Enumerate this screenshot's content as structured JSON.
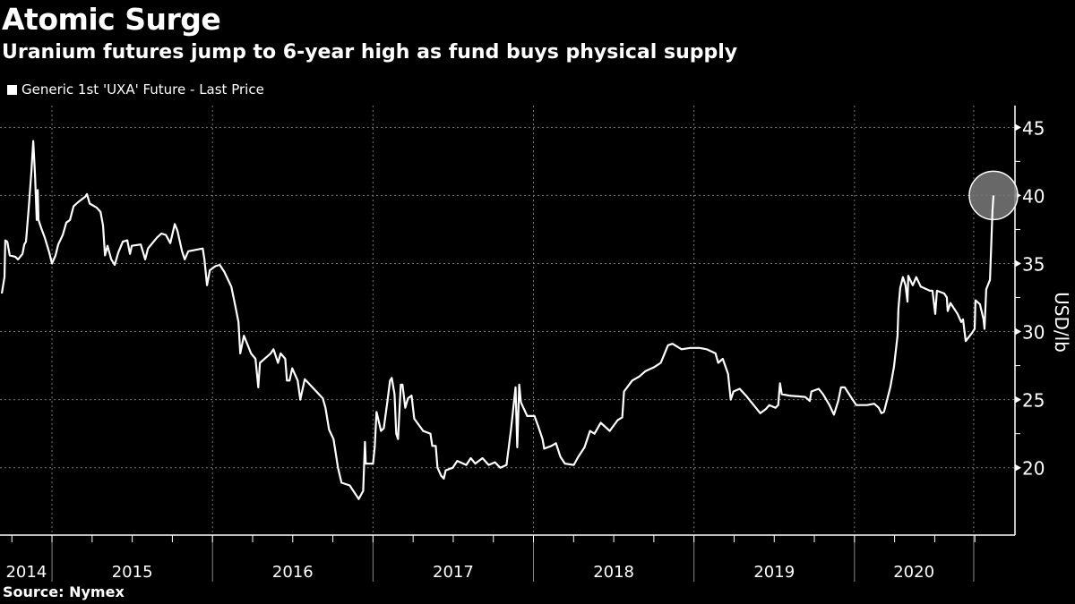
{
  "title": "Atomic Surge",
  "subtitle": "Uranium futures jump to 6-year high as fund buys physical supply",
  "source": "Source: Nymex",
  "chart_data": {
    "type": "line",
    "title": "Atomic Surge",
    "subtitle": "Uranium futures jump to 6-year high as fund buys physical supply",
    "xlabel": "",
    "ylabel": "USD/lb",
    "xlim": [
      2014.676,
      2021.0
    ],
    "ylim": [
      15.05,
      46.6
    ],
    "grid": true,
    "legend_position": "top-left",
    "y_ticks": [
      20,
      25,
      30,
      35,
      40,
      45
    ],
    "x_dividers": [
      2015,
      2016,
      2017,
      2018,
      2019,
      2020,
      2020.743
    ],
    "x_labels": [
      {
        "label": "2014",
        "at": 2014.84
      },
      {
        "label": "2015",
        "at": 2015.5
      },
      {
        "label": "2016",
        "at": 2016.5
      },
      {
        "label": "2017",
        "at": 2017.5
      },
      {
        "label": "2018",
        "at": 2018.5
      },
      {
        "label": "2019",
        "at": 2019.5
      },
      {
        "label": "2020",
        "at": 2020.37
      }
    ],
    "highlight": {
      "x": 2020.866,
      "y": 40.0
    },
    "series": [
      {
        "name": "Generic 1st 'UXA' Future - Last Price",
        "color": "#ffffff",
        "points": [
          [
            2014.687,
            32.8
          ],
          [
            2014.704,
            34.0
          ],
          [
            2014.709,
            36.7
          ],
          [
            2014.721,
            36.6
          ],
          [
            2014.737,
            35.6
          ],
          [
            2014.771,
            35.5
          ],
          [
            2014.788,
            35.3
          ],
          [
            2014.816,
            35.7
          ],
          [
            2014.827,
            36.4
          ],
          [
            2014.838,
            36.6
          ],
          [
            2014.855,
            39.1
          ],
          [
            2014.872,
            41.8
          ],
          [
            2014.883,
            44.0
          ],
          [
            2014.894,
            41.5
          ],
          [
            2014.905,
            38.2
          ],
          [
            2014.911,
            40.4
          ],
          [
            2014.916,
            38.2
          ],
          [
            2014.933,
            37.6
          ],
          [
            2014.955,
            36.9
          ],
          [
            2014.983,
            35.8
          ],
          [
            2015.0,
            35.0
          ],
          [
            2015.022,
            35.6
          ],
          [
            2015.039,
            36.4
          ],
          [
            2015.067,
            37.1
          ],
          [
            2015.089,
            38.0
          ],
          [
            2015.112,
            38.2
          ],
          [
            2015.134,
            39.2
          ],
          [
            2015.162,
            39.5
          ],
          [
            2015.207,
            39.9
          ],
          [
            2015.218,
            40.1
          ],
          [
            2015.235,
            39.4
          ],
          [
            2015.279,
            39.1
          ],
          [
            2015.302,
            38.8
          ],
          [
            2015.318,
            37.8
          ],
          [
            2015.33,
            35.6
          ],
          [
            2015.346,
            36.3
          ],
          [
            2015.369,
            35.3
          ],
          [
            2015.391,
            34.9
          ],
          [
            2015.413,
            35.8
          ],
          [
            2015.441,
            36.6
          ],
          [
            2015.469,
            36.7
          ],
          [
            2015.486,
            35.7
          ],
          [
            2015.497,
            36.3
          ],
          [
            2015.553,
            36.4
          ],
          [
            2015.581,
            35.3
          ],
          [
            2015.598,
            36.1
          ],
          [
            2015.654,
            36.9
          ],
          [
            2015.682,
            37.2
          ],
          [
            2015.709,
            37.1
          ],
          [
            2015.737,
            36.5
          ],
          [
            2015.765,
            37.9
          ],
          [
            2015.782,
            37.4
          ],
          [
            2015.81,
            35.9
          ],
          [
            2015.827,
            35.3
          ],
          [
            2015.849,
            35.9
          ],
          [
            2015.939,
            36.1
          ],
          [
            2015.95,
            35.3
          ],
          [
            2015.966,
            33.4
          ],
          [
            2015.983,
            34.5
          ],
          [
            2016.017,
            34.8
          ],
          [
            2016.045,
            34.9
          ],
          [
            2016.073,
            34.4
          ],
          [
            2016.117,
            33.3
          ],
          [
            2016.14,
            32.0
          ],
          [
            2016.162,
            30.7
          ],
          [
            2016.173,
            28.4
          ],
          [
            2016.196,
            29.7
          ],
          [
            2016.24,
            28.4
          ],
          [
            2016.268,
            28.0
          ],
          [
            2016.285,
            25.9
          ],
          [
            2016.296,
            27.7
          ],
          [
            2016.363,
            28.4
          ],
          [
            2016.38,
            28.7
          ],
          [
            2016.408,
            27.7
          ],
          [
            2016.425,
            28.4
          ],
          [
            2016.453,
            28.0
          ],
          [
            2016.464,
            26.4
          ],
          [
            2016.48,
            26.4
          ],
          [
            2016.497,
            27.3
          ],
          [
            2016.531,
            26.4
          ],
          [
            2016.547,
            25.0
          ],
          [
            2016.575,
            26.5
          ],
          [
            2016.631,
            25.8
          ],
          [
            2016.687,
            25.1
          ],
          [
            2016.704,
            24.4
          ],
          [
            2016.726,
            22.8
          ],
          [
            2016.754,
            22.1
          ],
          [
            2016.782,
            20.0
          ],
          [
            2016.804,
            18.9
          ],
          [
            2016.855,
            18.7
          ],
          [
            2016.911,
            17.7
          ],
          [
            2016.939,
            18.3
          ],
          [
            2016.95,
            21.9
          ],
          [
            2016.955,
            20.3
          ],
          [
            2017.0,
            20.3
          ],
          [
            2017.011,
            21.5
          ],
          [
            2017.022,
            24.1
          ],
          [
            2017.05,
            22.7
          ],
          [
            2017.067,
            22.9
          ],
          [
            2017.089,
            24.8
          ],
          [
            2017.106,
            26.4
          ],
          [
            2017.117,
            26.6
          ],
          [
            2017.134,
            25.4
          ],
          [
            2017.145,
            22.5
          ],
          [
            2017.156,
            22.1
          ],
          [
            2017.173,
            26.1
          ],
          [
            2017.184,
            26.1
          ],
          [
            2017.201,
            24.4
          ],
          [
            2017.218,
            25.1
          ],
          [
            2017.24,
            25.3
          ],
          [
            2017.257,
            23.6
          ],
          [
            2017.313,
            22.7
          ],
          [
            2017.358,
            22.5
          ],
          [
            2017.369,
            21.6
          ],
          [
            2017.391,
            21.6
          ],
          [
            2017.402,
            20.0
          ],
          [
            2017.425,
            19.4
          ],
          [
            2017.441,
            19.2
          ],
          [
            2017.453,
            19.8
          ],
          [
            2017.497,
            20.0
          ],
          [
            2017.525,
            20.5
          ],
          [
            2017.581,
            20.2
          ],
          [
            2017.609,
            20.7
          ],
          [
            2017.637,
            20.3
          ],
          [
            2017.682,
            20.7
          ],
          [
            2017.721,
            20.2
          ],
          [
            2017.76,
            20.4
          ],
          [
            2017.793,
            20.0
          ],
          [
            2017.832,
            20.2
          ],
          [
            2017.86,
            22.8
          ],
          [
            2017.888,
            25.9
          ],
          [
            2017.899,
            21.5
          ],
          [
            2017.911,
            26.1
          ],
          [
            2017.922,
            24.8
          ],
          [
            2017.961,
            23.8
          ],
          [
            2018.006,
            23.8
          ],
          [
            2018.028,
            23.1
          ],
          [
            2018.056,
            22.1
          ],
          [
            2018.067,
            21.4
          ],
          [
            2018.112,
            21.6
          ],
          [
            2018.14,
            21.8
          ],
          [
            2018.168,
            20.8
          ],
          [
            2018.196,
            20.3
          ],
          [
            2018.251,
            20.2
          ],
          [
            2018.279,
            20.8
          ],
          [
            2018.318,
            21.5
          ],
          [
            2018.352,
            22.7
          ],
          [
            2018.38,
            22.5
          ],
          [
            2018.419,
            23.3
          ],
          [
            2018.475,
            22.7
          ],
          [
            2018.525,
            23.5
          ],
          [
            2018.553,
            23.7
          ],
          [
            2018.564,
            25.6
          ],
          [
            2018.615,
            26.4
          ],
          [
            2018.659,
            26.7
          ],
          [
            2018.698,
            27.1
          ],
          [
            2018.754,
            27.4
          ],
          [
            2018.793,
            27.7
          ],
          [
            2018.838,
            29.0
          ],
          [
            2018.866,
            29.1
          ],
          [
            2018.922,
            28.7
          ],
          [
            2018.978,
            28.8
          ],
          [
            2019.034,
            28.8
          ],
          [
            2019.078,
            28.7
          ],
          [
            2019.134,
            28.4
          ],
          [
            2019.151,
            27.7
          ],
          [
            2019.179,
            28.0
          ],
          [
            2019.212,
            26.9
          ],
          [
            2019.229,
            25.0
          ],
          [
            2019.246,
            25.6
          ],
          [
            2019.285,
            25.8
          ],
          [
            2019.324,
            25.3
          ],
          [
            2019.385,
            24.4
          ],
          [
            2019.413,
            24.0
          ],
          [
            2019.447,
            24.3
          ],
          [
            2019.469,
            24.6
          ],
          [
            2019.508,
            24.4
          ],
          [
            2019.525,
            24.6
          ],
          [
            2019.536,
            26.2
          ],
          [
            2019.547,
            25.4
          ],
          [
            2019.592,
            25.3
          ],
          [
            2019.693,
            25.2
          ],
          [
            2019.721,
            24.9
          ],
          [
            2019.732,
            25.6
          ],
          [
            2019.777,
            25.8
          ],
          [
            2019.804,
            25.4
          ],
          [
            2019.844,
            24.6
          ],
          [
            2019.872,
            23.9
          ],
          [
            2019.899,
            24.9
          ],
          [
            2019.916,
            25.9
          ],
          [
            2019.939,
            25.9
          ],
          [
            2019.983,
            25.1
          ],
          [
            2020.011,
            24.6
          ],
          [
            2020.078,
            24.6
          ],
          [
            2020.123,
            24.7
          ],
          [
            2020.151,
            24.4
          ],
          [
            2020.168,
            24.0
          ],
          [
            2020.184,
            24.1
          ],
          [
            2020.223,
            25.9
          ],
          [
            2020.246,
            27.4
          ],
          [
            2020.268,
            29.7
          ],
          [
            2020.274,
            31.7
          ],
          [
            2020.285,
            33.2
          ],
          [
            2020.302,
            34.0
          ],
          [
            2020.318,
            33.4
          ],
          [
            2020.33,
            32.2
          ],
          [
            2020.335,
            34.1
          ],
          [
            2020.363,
            33.4
          ],
          [
            2020.385,
            34.0
          ],
          [
            2020.413,
            33.3
          ],
          [
            2020.469,
            33.0
          ],
          [
            2020.486,
            33.0
          ],
          [
            2020.503,
            31.3
          ],
          [
            2020.514,
            33.0
          ],
          [
            2020.559,
            32.8
          ],
          [
            2020.575,
            32.5
          ],
          [
            2020.581,
            31.5
          ],
          [
            2020.598,
            32.1
          ],
          [
            2020.642,
            31.3
          ],
          [
            2020.665,
            30.7
          ],
          [
            2020.676,
            30.9
          ],
          [
            2020.693,
            29.3
          ],
          [
            2020.732,
            29.9
          ],
          [
            2020.749,
            30.2
          ],
          [
            2020.754,
            32.3
          ],
          [
            2020.782,
            32.0
          ],
          [
            2020.804,
            30.9
          ],
          [
            2020.81,
            30.2
          ],
          [
            2020.821,
            33.1
          ],
          [
            2020.844,
            33.8
          ],
          [
            2020.86,
            38.9
          ],
          [
            2020.866,
            40.0
          ]
        ]
      }
    ]
  }
}
